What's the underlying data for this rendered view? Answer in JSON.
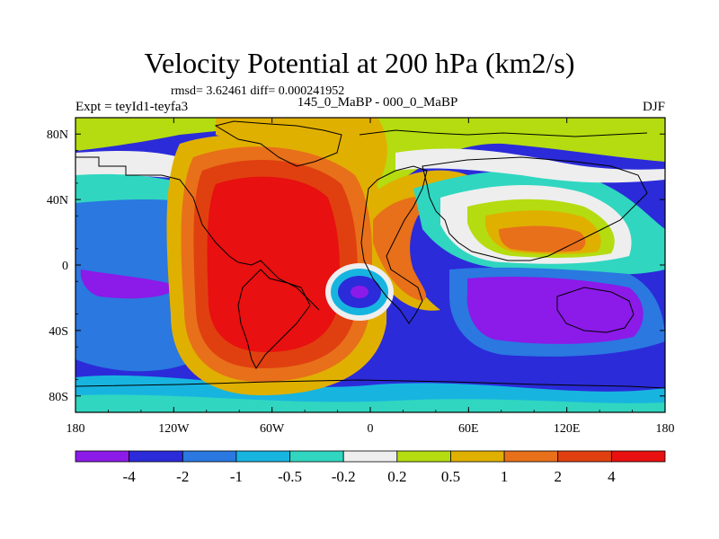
{
  "header": {
    "title": "Velocity Potential at 200 hPa (km2/s)",
    "stats": "rmsd= 3.62461 diff= 0.000241952",
    "left": "Expt = teyId1-teyfa3",
    "center": "145_0_MaBP - 000_0_MaBP",
    "right": "DJF"
  },
  "chart_data": {
    "type": "heatmap",
    "title": "Velocity Potential at 200 hPa (km2/s)",
    "subtitle": "145_0_MaBP - 000_0_MaBP",
    "xlabel": "",
    "ylabel": "",
    "xlim": [
      -180,
      180
    ],
    "ylim": [
      -90,
      90
    ],
    "x_ticks": [
      -180,
      -120,
      -60,
      0,
      60,
      120,
      180
    ],
    "x_tick_labels": [
      "180",
      "120W",
      "60W",
      "0",
      "60E",
      "120E",
      "180"
    ],
    "y_ticks": [
      80,
      40,
      0,
      -40,
      -80
    ],
    "y_tick_labels": [
      "80N",
      "40N",
      "0",
      "40S",
      "80S"
    ],
    "colorbar_levels": [
      "-4",
      "-2",
      "-1",
      "-0.5",
      "-0.2",
      "0.2",
      "0.5",
      "1",
      "2",
      "4"
    ],
    "colorbar_colors": [
      "#8c1ae8",
      "#2b2bd9",
      "#2a78e0",
      "#18b4e0",
      "#30d6c0",
      "#eeeeee",
      "#b4dc10",
      "#e0b000",
      "#e8701a",
      "#e04010",
      "#e81010"
    ],
    "field_fill_colors": [
      "#2b2bd9",
      "#2a78e0",
      "#18b4e0",
      "#30d6c0",
      "#eeeeee",
      "#b4dc10",
      "#e0b000",
      "#e8701a",
      "#e04010",
      "#e81010",
      "#8c1ae8"
    ]
  }
}
